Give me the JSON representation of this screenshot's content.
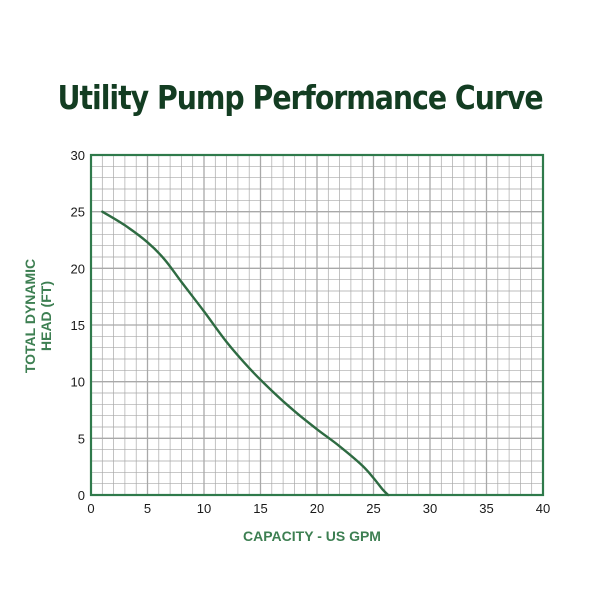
{
  "colors": {
    "title": "#133d22",
    "axis": "#2f7a4b",
    "grid": "#a9a9a9",
    "curve": "#2e6b42",
    "axis_title": "#3d7f52",
    "tick_text": "#1a1a1a"
  },
  "chart_data": {
    "type": "line",
    "title": "Utility Pump Performance Curve",
    "xlabel": "CAPACITY - US GPM",
    "ylabel_lines": [
      "TOTAL DYNAMIC",
      "HEAD (FT)"
    ],
    "xlim": [
      0,
      40
    ],
    "ylim": [
      0,
      30
    ],
    "xticks": [
      0,
      5,
      10,
      15,
      20,
      25,
      30,
      35,
      40
    ],
    "yticks": [
      0,
      5,
      10,
      15,
      20,
      25,
      30
    ],
    "grid": true,
    "minor_grid_step": 1,
    "legend": "none",
    "series": [
      {
        "x": [
          1,
          3,
          5,
          6.5,
          8,
          10,
          12,
          14,
          16,
          18,
          20,
          22,
          24,
          25,
          25.8,
          26.3
        ],
        "y": [
          25,
          23.8,
          22.3,
          20.8,
          18.8,
          16.2,
          13.5,
          11.2,
          9.2,
          7.4,
          5.8,
          4.3,
          2.6,
          1.5,
          0.5,
          0
        ]
      }
    ]
  }
}
